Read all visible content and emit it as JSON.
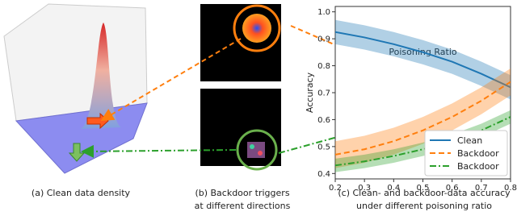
{
  "captions": {
    "a": [
      "(a) Clean data density"
    ],
    "b": [
      "(b) Backdoor triggers",
      "at different directions"
    ],
    "c": [
      "(c) Clean- and backdoor-data accuracy",
      "under different poisoning ratio"
    ]
  },
  "chart_data": {
    "type": "line",
    "xlabel": "Poisoning Ratio",
    "ylabel": "Accuracy",
    "x": [
      0.2,
      0.3,
      0.4,
      0.5,
      0.6,
      0.7,
      0.8
    ],
    "xlim": [
      0.2,
      0.8
    ],
    "ylim": [
      0.38,
      1.02
    ],
    "xticks": [
      0.2,
      0.3,
      0.4,
      0.5,
      0.6,
      0.7,
      0.8
    ],
    "yticks": [
      0.4,
      0.5,
      0.6,
      0.7,
      0.8,
      0.9,
      {
        "value": 1,
        "label": "1.0"
      }
    ],
    "legend": "lower right",
    "grid": false,
    "series": [
      {
        "name": "Clean",
        "color": "#1f77b4",
        "dash": "solid",
        "values": [
          0.925,
          0.905,
          0.88,
          0.85,
          0.815,
          0.77,
          0.72
        ],
        "lower": [
          0.88,
          0.86,
          0.835,
          0.805,
          0.77,
          0.725,
          0.675
        ],
        "upper": [
          0.97,
          0.95,
          0.925,
          0.895,
          0.86,
          0.815,
          0.765
        ]
      },
      {
        "name": "Backdoor",
        "color": "#ff7f0e",
        "dash": "dashed",
        "values": [
          0.47,
          0.49,
          0.52,
          0.56,
          0.61,
          0.67,
          0.74
        ],
        "lower": [
          0.42,
          0.44,
          0.47,
          0.51,
          0.56,
          0.62,
          0.69
        ],
        "upper": [
          0.52,
          0.54,
          0.57,
          0.61,
          0.66,
          0.72,
          0.79
        ]
      },
      {
        "name": "Backdoor",
        "color": "#2ca02c",
        "dash": "dashdot",
        "values": [
          0.43,
          0.445,
          0.465,
          0.49,
          0.52,
          0.56,
          0.61
        ],
        "lower": [
          0.405,
          0.42,
          0.44,
          0.465,
          0.495,
          0.535,
          0.585
        ],
        "upper": [
          0.455,
          0.47,
          0.49,
          0.515,
          0.545,
          0.585,
          0.635
        ]
      }
    ]
  }
}
